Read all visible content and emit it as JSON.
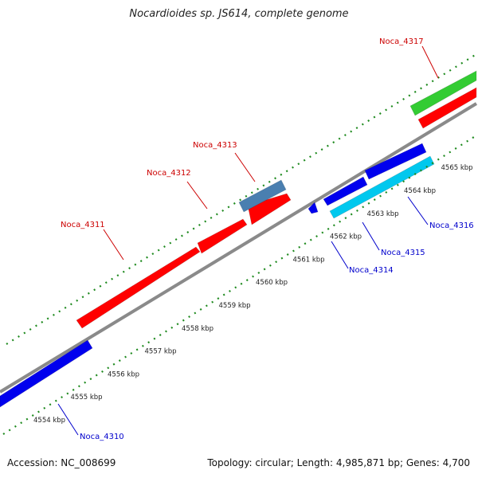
{
  "title": "Nocardioides sp. JS614, complete genome",
  "footer": {
    "accession": "Accession: NC_008699",
    "summary": "Topology: circular; Length: 4,985,871 bp; Genes: 4,700"
  },
  "colors": {
    "backbone": "#8a8a8a",
    "tick_green": "#1e8a1e",
    "forward_gene": "#ff0000",
    "forward_label": "#cc0000",
    "reverse_gene": "#0000ee",
    "reverse_label": "#0000cc",
    "cyan_gene": "#00c8ee",
    "steel_gene": "#4a7fb0",
    "green_gene": "#33cc33"
  },
  "scale_labels": [
    "4554 kbp",
    "4555 kbp",
    "4556 kbp",
    "4557 kbp",
    "4558 kbp",
    "4559 kbp",
    "4560 kbp",
    "4561 kbp",
    "4562 kbp",
    "4563 kbp",
    "4564 kbp",
    "4565 kbp"
  ],
  "genes": [
    {
      "name": "Noca_4310",
      "strand": "reverse",
      "color": "blue"
    },
    {
      "name": "Noca_4311",
      "strand": "forward",
      "color": "red"
    },
    {
      "name": "Noca_4312",
      "strand": "forward",
      "color": "red"
    },
    {
      "name": "Noca_4313",
      "strand": "forward",
      "color": "steelblue"
    },
    {
      "name": "Noca_4314",
      "strand": "reverse",
      "color": "blue"
    },
    {
      "name": "Noca_4315",
      "strand": "reverse",
      "color": "cyan"
    },
    {
      "name": "Noca_4316",
      "strand": "reverse",
      "color": "blue"
    },
    {
      "name": "Noca_4317",
      "strand": "forward",
      "color": "green"
    }
  ]
}
